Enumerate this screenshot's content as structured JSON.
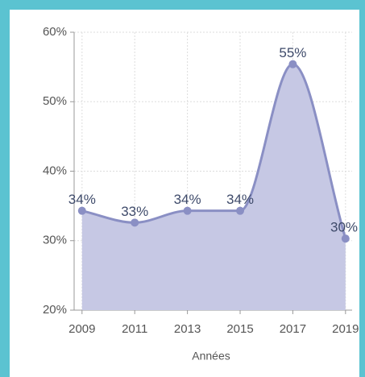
{
  "chart_data": {
    "type": "area",
    "x_label": "Années",
    "x": [
      2009,
      2011,
      2013,
      2015,
      2017,
      2019
    ],
    "values": [
      34.3,
      32.6,
      34.3,
      34.3,
      55.4,
      30.3
    ],
    "value_labels": [
      "34%",
      "33%",
      "34%",
      "34%",
      "55%",
      "30%"
    ],
    "color": "#8a8fc4",
    "fill": "#c6c8e4",
    "xlim": [
      2008.7,
      2019.25
    ],
    "xticks": [
      2009,
      2011,
      2013,
      2015,
      2017,
      2019
    ],
    "ylim": [
      20,
      60
    ],
    "yticks": [
      {
        "value": 20,
        "label": "20%"
      },
      {
        "value": 30,
        "label": "30%"
      },
      {
        "value": 40,
        "label": "40%"
      },
      {
        "value": 50,
        "label": "50%"
      },
      {
        "value": 60,
        "label": "60%"
      }
    ],
    "grid": true
  }
}
